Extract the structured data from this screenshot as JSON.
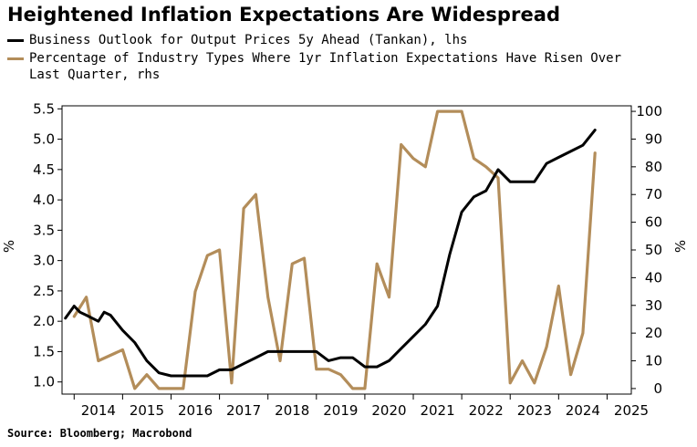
{
  "chart_data": {
    "type": "line",
    "title": "Heightened Inflation Expectations Are Widespread",
    "source": "Source: Bloomberg; Macrobond",
    "x_ticks": [
      "2014",
      "2015",
      "2016",
      "2017",
      "2018",
      "2019",
      "2020",
      "2021",
      "2022",
      "2023",
      "2024",
      "2025"
    ],
    "left_axis": {
      "label": "%",
      "ticks": [
        "1.0",
        "1.5",
        "2.0",
        "2.5",
        "3.0",
        "3.5",
        "4.0",
        "4.5",
        "5.0",
        "5.5"
      ],
      "min": 0.8,
      "max": 5.55
    },
    "right_axis": {
      "label": "%",
      "ticks": [
        "0",
        "10",
        "20",
        "30",
        "40",
        "50",
        "60",
        "70",
        "80",
        "90",
        "100"
      ],
      "min": -2,
      "max": 102
    },
    "xlim": [
      2013.75,
      2025.5
    ],
    "series": [
      {
        "name": "Business Outlook for Output Prices 5y Ahead (Tankan), lhs",
        "axis": "left",
        "color": "#000000",
        "x": [
          2013.82,
          2014.0,
          2014.12,
          2014.25,
          2014.5,
          2014.62,
          2014.75,
          2015.0,
          2015.25,
          2015.5,
          2015.75,
          2016.0,
          2016.25,
          2016.5,
          2016.75,
          2017.0,
          2017.25,
          2017.5,
          2017.75,
          2018.0,
          2018.25,
          2018.5,
          2018.75,
          2019.0,
          2019.25,
          2019.5,
          2019.75,
          2020.0,
          2020.25,
          2020.5,
          2020.75,
          2021.0,
          2021.25,
          2021.5,
          2021.75,
          2022.0,
          2022.25,
          2022.5,
          2022.75,
          2023.0,
          2023.25,
          2023.5,
          2023.75,
          2024.0,
          2024.25,
          2024.5,
          2024.75
        ],
        "values": [
          2.05,
          2.25,
          2.15,
          2.1,
          2.0,
          2.15,
          2.1,
          1.85,
          1.65,
          1.35,
          1.15,
          1.1,
          1.1,
          1.1,
          1.1,
          1.2,
          1.2,
          1.3,
          1.4,
          1.5,
          1.5,
          1.5,
          1.5,
          1.5,
          1.35,
          1.4,
          1.4,
          1.25,
          1.25,
          1.35,
          1.55,
          1.75,
          1.95,
          2.25,
          3.1,
          3.8,
          4.05,
          4.15,
          4.5,
          4.3,
          4.3,
          4.3,
          4.6,
          4.7,
          4.8,
          4.9,
          5.15
        ]
      },
      {
        "name": "Percentage of Industry Types Where 1yr Inflation Expectations Have Risen Over Last Quarter, rhs",
        "axis": "right",
        "color": "#B38D5A",
        "x": [
          2014.0,
          2014.25,
          2014.5,
          2015.0,
          2015.25,
          2015.5,
          2015.75,
          2016.0,
          2016.25,
          2016.5,
          2016.75,
          2017.0,
          2017.25,
          2017.5,
          2017.75,
          2018.0,
          2018.25,
          2018.5,
          2018.75,
          2019.0,
          2019.25,
          2019.5,
          2019.75,
          2020.0,
          2020.25,
          2020.5,
          2020.75,
          2021.0,
          2021.25,
          2021.5,
          2021.75,
          2022.0,
          2022.25,
          2022.5,
          2022.75,
          2023.0,
          2023.25,
          2023.5,
          2023.75,
          2024.0,
          2024.25,
          2024.5,
          2024.75
        ],
        "values": [
          26,
          33,
          10,
          14,
          0,
          5,
          0,
          0,
          0,
          35,
          48,
          50,
          2,
          65,
          70,
          33,
          10,
          45,
          47,
          7,
          7,
          5,
          0,
          0,
          45,
          33,
          88,
          83,
          80,
          100,
          100,
          100,
          83,
          80,
          76,
          2,
          10,
          2,
          15,
          37,
          5,
          20,
          85
        ]
      }
    ]
  }
}
